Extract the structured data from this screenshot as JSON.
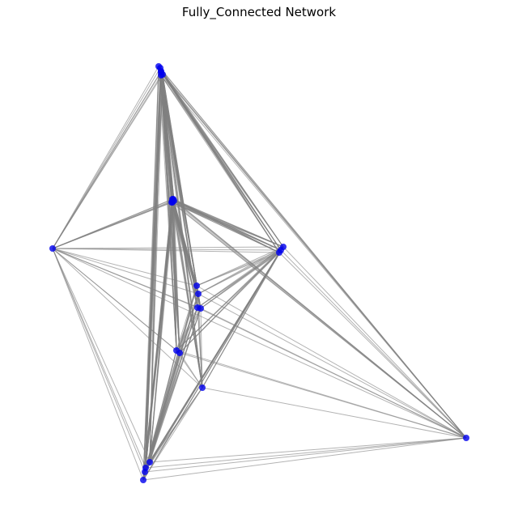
{
  "title": "Fully_Connected Network",
  "colors": {
    "node": "#0000ee",
    "edge": "#808080",
    "background": "#ffffff"
  },
  "graph": {
    "type": "fully_connected",
    "node_count": 28
  }
}
